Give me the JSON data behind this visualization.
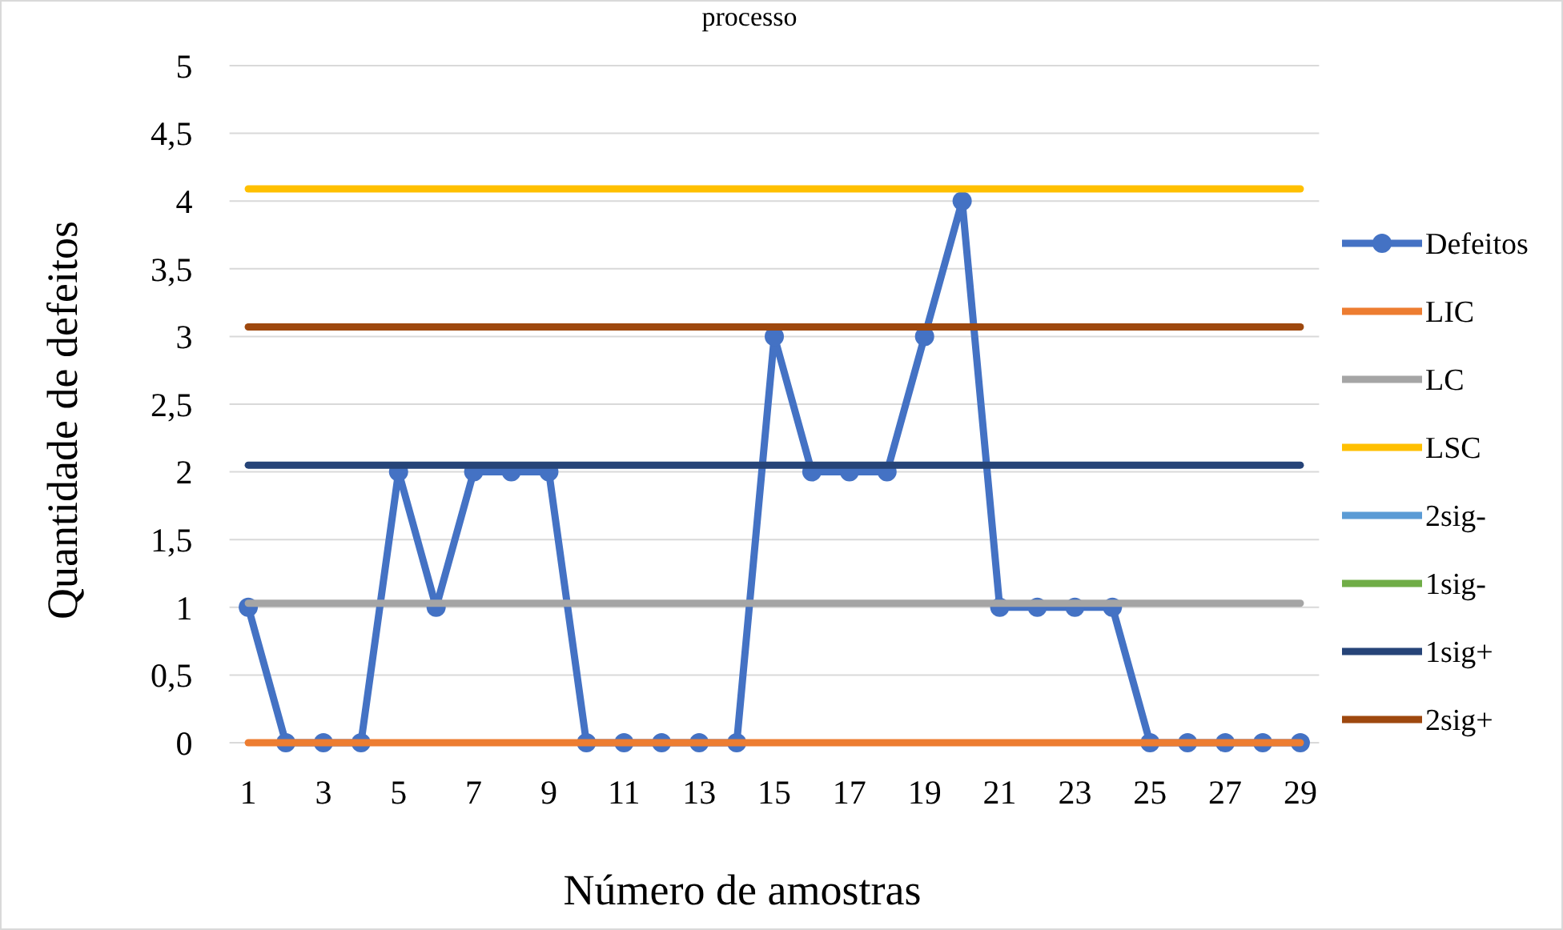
{
  "chart_data": {
    "type": "line",
    "title": "processo",
    "xlabel": "Número de amostras",
    "ylabel": "Quantidade de defeitos",
    "x": [
      1,
      2,
      3,
      4,
      5,
      6,
      7,
      8,
      9,
      10,
      11,
      12,
      13,
      14,
      15,
      16,
      17,
      18,
      19,
      20,
      21,
      22,
      23,
      24,
      25,
      26,
      27,
      28,
      29
    ],
    "xlim": [
      0.5,
      29.5
    ],
    "xticks": [
      1,
      3,
      5,
      7,
      9,
      11,
      13,
      15,
      17,
      19,
      21,
      23,
      25,
      27,
      29
    ],
    "ylim": [
      0,
      5
    ],
    "yticks": [
      0,
      {
        "value": 0.5,
        "label": "0,5"
      },
      1,
      {
        "value": 1.5,
        "label": "1,5"
      },
      2,
      {
        "value": 2.5,
        "label": "2,5"
      },
      3,
      {
        "value": 3.5,
        "label": "3,5"
      },
      4,
      {
        "value": 4.5,
        "label": "4,5"
      },
      5
    ],
    "grid": "y",
    "legend": "right",
    "series": [
      {
        "name": "Defeitos",
        "color": "#4472c4",
        "marker": "circle",
        "values": [
          1,
          0,
          0,
          0,
          2,
          1,
          2,
          2,
          2,
          0,
          0,
          0,
          0,
          0,
          3,
          2,
          2,
          2,
          3,
          4,
          1,
          1,
          1,
          1,
          0,
          0,
          0,
          0,
          0
        ]
      },
      {
        "name": "LIC",
        "color": "#ed7d31",
        "marker": "none",
        "values": [
          0,
          0,
          0,
          0,
          0,
          0,
          0,
          0,
          0,
          0,
          0,
          0,
          0,
          0,
          0,
          0,
          0,
          0,
          0,
          0,
          0,
          0,
          0,
          0,
          0,
          0,
          0,
          0,
          0
        ]
      },
      {
        "name": "LC",
        "color": "#a5a5a5",
        "marker": "none",
        "values": [
          1.03,
          1.03,
          1.03,
          1.03,
          1.03,
          1.03,
          1.03,
          1.03,
          1.03,
          1.03,
          1.03,
          1.03,
          1.03,
          1.03,
          1.03,
          1.03,
          1.03,
          1.03,
          1.03,
          1.03,
          1.03,
          1.03,
          1.03,
          1.03,
          1.03,
          1.03,
          1.03,
          1.03,
          1.03
        ]
      },
      {
        "name": "LSC",
        "color": "#ffc000",
        "marker": "none",
        "values": [
          4.09,
          4.09,
          4.09,
          4.09,
          4.09,
          4.09,
          4.09,
          4.09,
          4.09,
          4.09,
          4.09,
          4.09,
          4.09,
          4.09,
          4.09,
          4.09,
          4.09,
          4.09,
          4.09,
          4.09,
          4.09,
          4.09,
          4.09,
          4.09,
          4.09,
          4.09,
          4.09,
          4.09,
          4.09
        ]
      },
      {
        "name": "2sig-",
        "color": "#5b9bd5",
        "marker": "none",
        "values": [
          null,
          null,
          null,
          null,
          null,
          null,
          null,
          null,
          null,
          null,
          null,
          null,
          null,
          null,
          null,
          null,
          null,
          null,
          null,
          null,
          null,
          null,
          null,
          null,
          null,
          null,
          null,
          null,
          null
        ]
      },
      {
        "name": "1sig-",
        "color": "#70ad47",
        "marker": "none",
        "values": [
          null,
          null,
          null,
          null,
          null,
          null,
          null,
          null,
          null,
          null,
          null,
          null,
          null,
          null,
          null,
          null,
          null,
          null,
          null,
          null,
          null,
          null,
          null,
          null,
          null,
          null,
          null,
          null,
          null
        ]
      },
      {
        "name": "1sig+",
        "color": "#264478",
        "marker": "none",
        "values": [
          2.05,
          2.05,
          2.05,
          2.05,
          2.05,
          2.05,
          2.05,
          2.05,
          2.05,
          2.05,
          2.05,
          2.05,
          2.05,
          2.05,
          2.05,
          2.05,
          2.05,
          2.05,
          2.05,
          2.05,
          2.05,
          2.05,
          2.05,
          2.05,
          2.05,
          2.05,
          2.05,
          2.05,
          2.05
        ]
      },
      {
        "name": "2sig+",
        "color": "#9e480e",
        "marker": "none",
        "values": [
          3.07,
          3.07,
          3.07,
          3.07,
          3.07,
          3.07,
          3.07,
          3.07,
          3.07,
          3.07,
          3.07,
          3.07,
          3.07,
          3.07,
          3.07,
          3.07,
          3.07,
          3.07,
          3.07,
          3.07,
          3.07,
          3.07,
          3.07,
          3.07,
          3.07,
          3.07,
          3.07,
          3.07,
          3.07
        ]
      }
    ]
  }
}
